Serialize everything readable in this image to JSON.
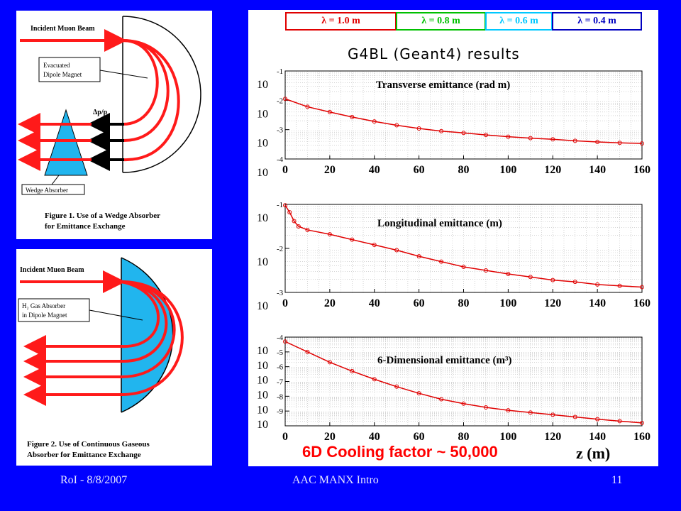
{
  "figure1": {
    "incident_label": "Incident Muon Beam",
    "magnet_label": [
      "Evacuated",
      "Dipole Magnet"
    ],
    "dp_label": "Δp/p",
    "absorber_label": "Wedge Absorber",
    "caption": [
      "Figure 1. Use of a Wedge Absorber",
      "for Emittance Exchange"
    ]
  },
  "figure2": {
    "incident_label": "Incident Muon Beam",
    "absorber_label": [
      "H₂ Gas Absorber",
      "in Dipole Magnet"
    ],
    "caption": [
      "Figure 2. Use of Continuous Gaseous",
      "Absorber for Emittance Exchange"
    ]
  },
  "legend": [
    {
      "label": "λ = 1.0 m",
      "color": "#e00000"
    },
    {
      "label": "λ = 0.8 m",
      "color": "#00c000"
    },
    {
      "label": "λ = 0.6 m",
      "color": "#00c8ff"
    },
    {
      "label": "λ = 0.4 m",
      "color": "#0000c0"
    }
  ],
  "results_title": "G4BL (Geant4) results",
  "cooling_text": "6D Cooling factor ~ 50,000",
  "x_axis_label": "z (m)",
  "chart_data": [
    {
      "type": "line",
      "title": "Transverse emittance (rad m)",
      "scale": "log",
      "ylim_exp": [
        -4,
        -1
      ],
      "ytick_exponents": [
        -1,
        -2,
        -3,
        -4
      ],
      "xlim": [
        0,
        160
      ],
      "xticks": [
        0,
        20,
        40,
        60,
        80,
        100,
        120,
        140,
        160
      ],
      "grid": true,
      "series": [
        {
          "color": "#e00000",
          "x": [
            0,
            10,
            20,
            30,
            40,
            50,
            60,
            70,
            80,
            90,
            100,
            110,
            120,
            130,
            140,
            150,
            160
          ],
          "exp": [
            -1.95,
            -2.22,
            -2.4,
            -2.57,
            -2.72,
            -2.85,
            -2.96,
            -3.05,
            -3.11,
            -3.18,
            -3.24,
            -3.29,
            -3.33,
            -3.38,
            -3.42,
            -3.45,
            -3.47
          ]
        }
      ]
    },
    {
      "type": "line",
      "title": "Longitudinal emittance (m)",
      "scale": "log",
      "ylim_exp": [
        -3,
        -1
      ],
      "ytick_exponents": [
        -1,
        -2,
        -3
      ],
      "xlim": [
        0,
        160
      ],
      "xticks": [
        0,
        20,
        40,
        60,
        80,
        100,
        120,
        140,
        160
      ],
      "grid": true,
      "series": [
        {
          "color": "#e00000",
          "x": [
            0,
            2,
            4,
            6,
            10,
            20,
            30,
            40,
            50,
            60,
            70,
            80,
            90,
            100,
            110,
            120,
            130,
            140,
            150,
            160
          ],
          "exp": [
            -1.02,
            -1.18,
            -1.38,
            -1.5,
            -1.58,
            -1.68,
            -1.8,
            -1.92,
            -2.04,
            -2.18,
            -2.3,
            -2.42,
            -2.5,
            -2.58,
            -2.65,
            -2.72,
            -2.76,
            -2.82,
            -2.85,
            -2.88
          ]
        }
      ]
    },
    {
      "type": "line",
      "title": "6-Dimensional emittance (m³)",
      "scale": "log",
      "ylim_exp": [
        -10,
        -4
      ],
      "ytick_exponents": [
        -4,
        -5,
        -6,
        -7,
        -8,
        -9
      ],
      "xlim": [
        0,
        160
      ],
      "xticks": [
        0,
        20,
        40,
        60,
        80,
        100,
        120,
        140,
        160
      ],
      "grid": true,
      "series": [
        {
          "color": "#e00000",
          "x": [
            0,
            10,
            20,
            30,
            40,
            50,
            60,
            70,
            80,
            90,
            100,
            110,
            120,
            130,
            140,
            150,
            160
          ],
          "exp": [
            -4.3,
            -5.0,
            -5.7,
            -6.3,
            -6.85,
            -7.35,
            -7.8,
            -8.2,
            -8.5,
            -8.75,
            -8.95,
            -9.1,
            -9.25,
            -9.4,
            -9.55,
            -9.68,
            -9.8
          ]
        }
      ]
    }
  ],
  "footer": {
    "left": "RoI - 8/8/2007",
    "center": "AAC MANX Intro",
    "right": "11"
  }
}
